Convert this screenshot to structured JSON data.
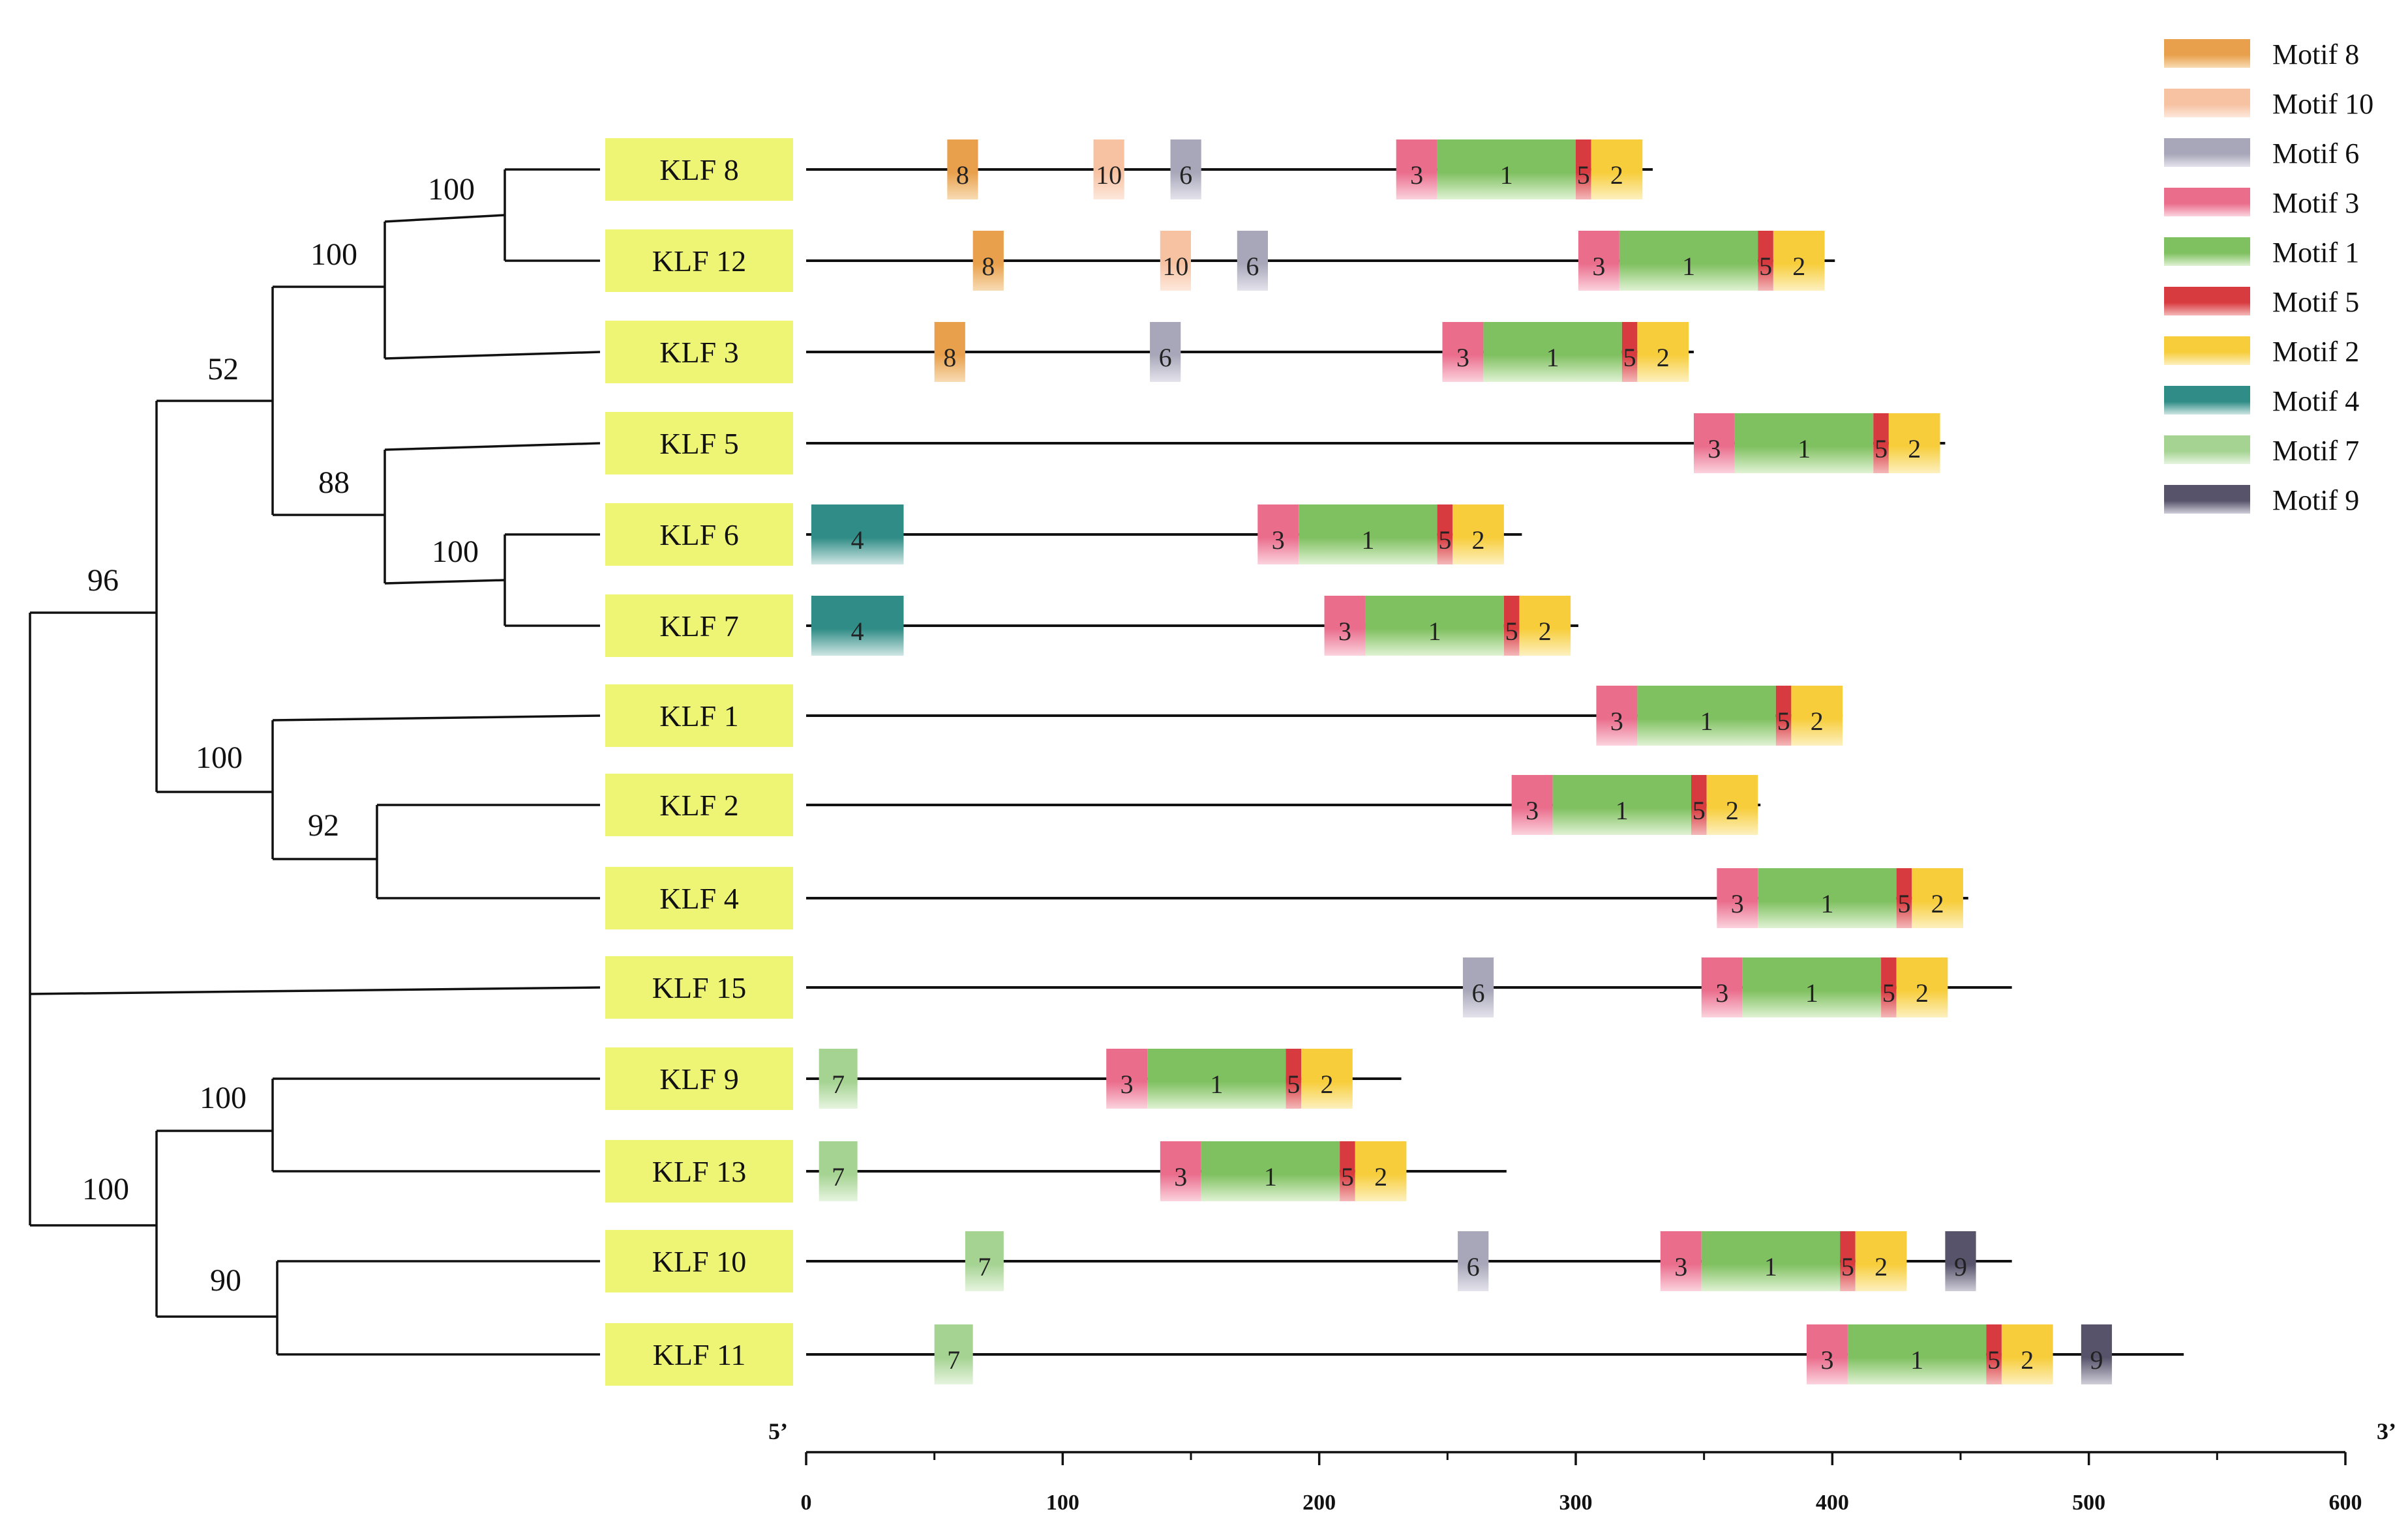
{
  "figure": {
    "axis_start_label": "5’",
    "axis_end_label": "3’",
    "axis_ticks": [
      "0",
      "100",
      "200",
      "300",
      "400",
      "500",
      "600"
    ],
    "axis_range": [
      0,
      600
    ]
  },
  "legend": [
    {
      "id": "m8",
      "label": "Motif 8",
      "num": "8",
      "color": "#e8a04c",
      "light": "#f8dcb4"
    },
    {
      "id": "m10",
      "label": "Motif 10",
      "num": "10",
      "color": "#f7c2a2",
      "light": "#fde8dc"
    },
    {
      "id": "m6",
      "label": "Motif 6",
      "num": "6",
      "color": "#a8a7b9",
      "light": "#e4e3ec"
    },
    {
      "id": "m3",
      "label": "Motif 3",
      "num": "3",
      "color": "#ea6d8c",
      "light": "#fbd3de"
    },
    {
      "id": "m1",
      "label": "Motif 1",
      "num": "1",
      "color": "#7fc060",
      "light": "#e0f2d4"
    },
    {
      "id": "m5",
      "label": "Motif 5",
      "num": "5",
      "color": "#d73a3f",
      "light": "#f4b8b8"
    },
    {
      "id": "m2",
      "label": "Motif 2",
      "num": "2",
      "color": "#f7cd3b",
      "light": "#fdf0bf"
    },
    {
      "id": "m4",
      "label": "Motif 4",
      "num": "4",
      "color": "#2f8c86",
      "light": "#cfe6e4"
    },
    {
      "id": "m7",
      "label": "Motif 7",
      "num": "7",
      "color": "#a5d392",
      "light": "#e6f4df"
    },
    {
      "id": "m9",
      "label": "Motif 9",
      "num": "9",
      "color": "#57536b",
      "light": "#cfcdd8"
    }
  ],
  "genes": [
    {
      "name": "KLF 8",
      "length": 330,
      "motifs": [
        [
          "m8",
          55,
          67
        ],
        [
          "m10",
          112,
          124
        ],
        [
          "m6",
          142,
          154
        ],
        [
          "m3",
          230,
          246
        ],
        [
          "m1",
          246,
          300
        ],
        [
          "m5",
          300,
          306
        ],
        [
          "m2",
          306,
          326
        ]
      ]
    },
    {
      "name": "KLF 12",
      "length": 401,
      "motifs": [
        [
          "m8",
          65,
          77
        ],
        [
          "m10",
          138,
          150
        ],
        [
          "m6",
          168,
          180
        ],
        [
          "m3",
          301,
          317
        ],
        [
          "m1",
          317,
          371
        ],
        [
          "m5",
          371,
          377
        ],
        [
          "m2",
          377,
          397
        ]
      ]
    },
    {
      "name": "KLF 3",
      "length": 346,
      "motifs": [
        [
          "m8",
          50,
          62
        ],
        [
          "m6",
          134,
          146
        ],
        [
          "m3",
          248,
          264
        ],
        [
          "m1",
          264,
          318
        ],
        [
          "m5",
          318,
          324
        ],
        [
          "m2",
          324,
          344
        ]
      ]
    },
    {
      "name": "KLF 5",
      "length": 444,
      "motifs": [
        [
          "m3",
          346,
          362
        ],
        [
          "m1",
          362,
          416
        ],
        [
          "m5",
          416,
          422
        ],
        [
          "m2",
          422,
          442
        ]
      ]
    },
    {
      "name": "KLF 6",
      "length": 279,
      "motifs": [
        [
          "m4",
          2,
          38
        ],
        [
          "m3",
          176,
          192
        ],
        [
          "m1",
          192,
          246
        ],
        [
          "m5",
          246,
          252
        ],
        [
          "m2",
          252,
          272
        ]
      ]
    },
    {
      "name": "KLF 7",
      "length": 301,
      "motifs": [
        [
          "m4",
          2,
          38
        ],
        [
          "m3",
          202,
          218
        ],
        [
          "m1",
          218,
          272
        ],
        [
          "m5",
          272,
          278
        ],
        [
          "m2",
          278,
          298
        ]
      ]
    },
    {
      "name": "KLF 1",
      "length": 404,
      "motifs": [
        [
          "m3",
          308,
          324
        ],
        [
          "m1",
          324,
          378
        ],
        [
          "m5",
          378,
          384
        ],
        [
          "m2",
          384,
          404
        ]
      ]
    },
    {
      "name": "KLF 2",
      "length": 372,
      "motifs": [
        [
          "m3",
          275,
          291
        ],
        [
          "m1",
          291,
          345
        ],
        [
          "m5",
          345,
          351
        ],
        [
          "m2",
          351,
          371
        ]
      ]
    },
    {
      "name": "KLF 4",
      "length": 453,
      "motifs": [
        [
          "m3",
          355,
          371
        ],
        [
          "m1",
          371,
          425
        ],
        [
          "m5",
          425,
          431
        ],
        [
          "m2",
          431,
          451
        ]
      ]
    },
    {
      "name": "KLF 15",
      "length": 470,
      "motifs": [
        [
          "m6",
          256,
          268
        ],
        [
          "m3",
          349,
          365
        ],
        [
          "m1",
          365,
          419
        ],
        [
          "m5",
          419,
          425
        ],
        [
          "m2",
          425,
          445
        ]
      ]
    },
    {
      "name": "KLF 9",
      "length": 232,
      "motifs": [
        [
          "m7",
          5,
          20
        ],
        [
          "m3",
          117,
          133
        ],
        [
          "m1",
          133,
          187
        ],
        [
          "m5",
          187,
          193
        ],
        [
          "m2",
          193,
          213
        ]
      ]
    },
    {
      "name": "KLF 13",
      "length": 273,
      "motifs": [
        [
          "m7",
          5,
          20
        ],
        [
          "m3",
          138,
          154
        ],
        [
          "m1",
          154,
          208
        ],
        [
          "m5",
          208,
          214
        ],
        [
          "m2",
          214,
          234
        ]
      ]
    },
    {
      "name": "KLF 10",
      "length": 470,
      "motifs": [
        [
          "m7",
          62,
          77
        ],
        [
          "m6",
          254,
          266
        ],
        [
          "m3",
          333,
          349
        ],
        [
          "m1",
          349,
          403
        ],
        [
          "m5",
          403,
          409
        ],
        [
          "m2",
          409,
          429
        ],
        [
          "m9",
          444,
          456
        ]
      ]
    },
    {
      "name": "KLF 11",
      "length": 537,
      "motifs": [
        [
          "m7",
          50,
          65
        ],
        [
          "m3",
          390,
          406
        ],
        [
          "m1",
          406,
          460
        ],
        [
          "m5",
          460,
          466
        ],
        [
          "m2",
          466,
          486
        ],
        [
          "m9",
          497,
          509
        ]
      ]
    }
  ],
  "bootstrap_values": [
    "100",
    "100",
    "52",
    "88",
    "100",
    "96",
    "100",
    "92",
    "100",
    "100",
    "90"
  ]
}
